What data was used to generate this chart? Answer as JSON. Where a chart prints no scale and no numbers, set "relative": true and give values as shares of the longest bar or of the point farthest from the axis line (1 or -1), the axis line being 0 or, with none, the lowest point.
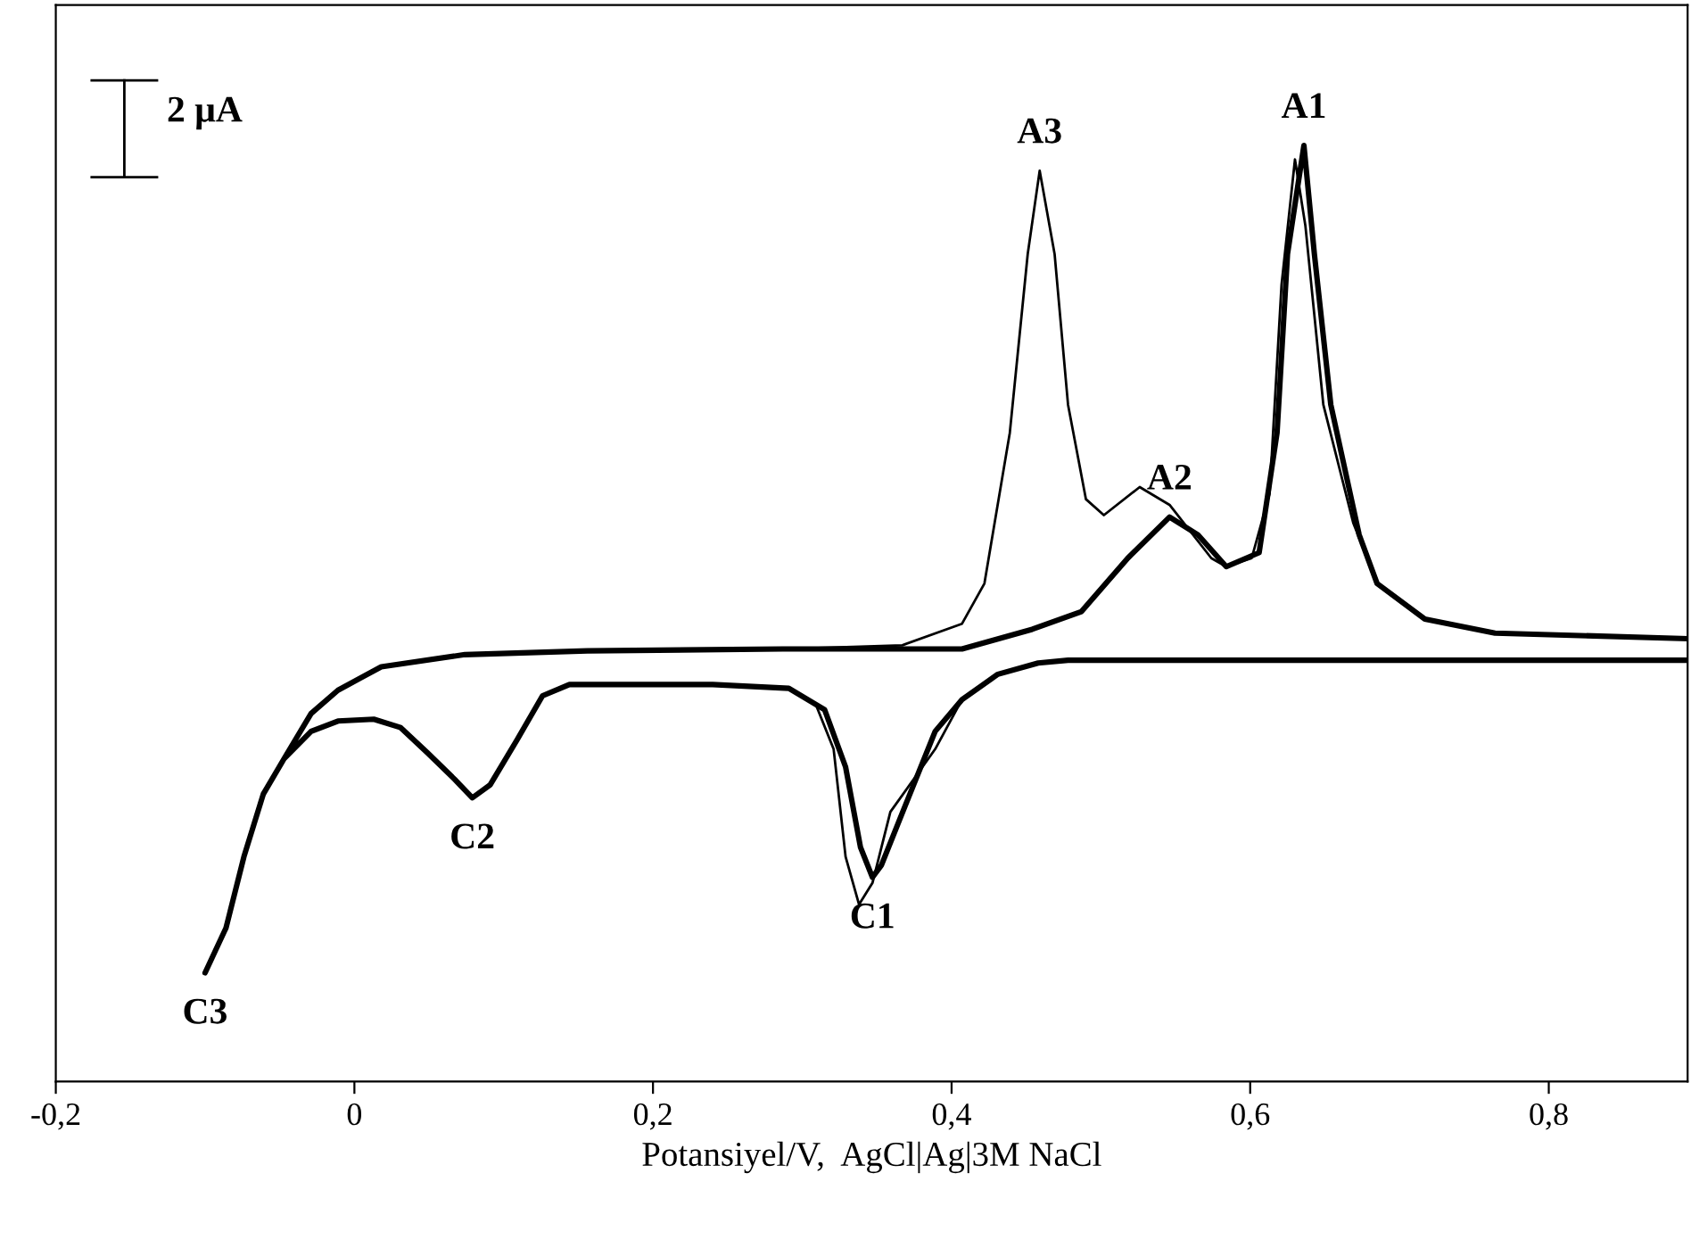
{
  "chart_data": {
    "type": "line",
    "relative": true,
    "xlabel": "Potansiyel/V,  AgCl|Ag|3M NaCl",
    "xlim": [
      -0.2,
      0.893
    ],
    "xticks": [
      {
        "value": -0.2,
        "label": "-0,2"
      },
      0,
      {
        "value": 0.2,
        "label": "0,2"
      },
      {
        "value": 0.4,
        "label": "0,4"
      },
      {
        "value": 0.6,
        "label": "0,6"
      },
      {
        "value": 0.8,
        "label": "0,8"
      }
    ],
    "tick_labels": "x",
    "grid": false,
    "legend": false,
    "marker": "none",
    "line_style": "solid",
    "series": [
      {
        "color": "#000000",
        "x": [
          0.892,
          0.478,
          0.458,
          0.431,
          0.407,
          0.389,
          0.359,
          0.347,
          0.338,
          0.329,
          0.321,
          0.309,
          0.291,
          0.24,
          0.144,
          0.126,
          0.109,
          0.091,
          0.079,
          0.067,
          0.049,
          0.031,
          0.013,
          -0.011,
          -0.029,
          -0.047,
          -0.061,
          -0.074,
          -0.086,
          -0.1,
          -0.086,
          -0.074,
          -0.061,
          -0.047,
          -0.029,
          -0.011,
          0.018,
          0.074,
          0.156,
          0.287,
          0.367,
          0.407,
          0.422,
          0.439,
          0.451,
          0.459,
          0.469,
          0.478,
          0.49,
          0.502,
          0.526,
          0.546,
          0.574,
          0.584,
          0.601,
          0.613,
          0.621,
          0.63,
          0.637,
          0.649,
          0.669,
          0.685,
          0.717,
          0.764,
          0.892
        ],
        "values": [
          0.45,
          0.45,
          0.447,
          0.435,
          0.408,
          0.355,
          0.288,
          0.212,
          0.189,
          0.24,
          0.355,
          0.403,
          0.42,
          0.424,
          0.424,
          0.412,
          0.365,
          0.317,
          0.303,
          0.323,
          0.351,
          0.378,
          0.387,
          0.385,
          0.374,
          0.345,
          0.307,
          0.24,
          0.164,
          0.116,
          0.164,
          0.24,
          0.307,
          0.345,
          0.393,
          0.418,
          0.443,
          0.456,
          0.46,
          0.462,
          0.466,
          0.489,
          0.532,
          0.693,
          0.884,
          0.973,
          0.884,
          0.723,
          0.622,
          0.605,
          0.635,
          0.616,
          0.559,
          0.55,
          0.559,
          0.628,
          0.851,
          0.985,
          0.914,
          0.723,
          0.597,
          0.532,
          0.494,
          0.479,
          0.473
        ]
      },
      {
        "color": "#000000",
        "x": [
          0.892,
          0.478,
          0.458,
          0.431,
          0.407,
          0.389,
          0.365,
          0.353,
          0.347,
          0.339,
          0.329,
          0.315,
          0.291,
          0.24,
          0.144,
          0.126,
          0.109,
          0.091,
          0.079,
          0.067,
          0.049,
          0.031,
          0.013,
          -0.011,
          -0.029,
          -0.047,
          -0.061,
          -0.074,
          -0.086,
          -0.1,
          -0.086,
          -0.074,
          -0.061,
          -0.047,
          -0.029,
          -0.011,
          0.018,
          0.074,
          0.156,
          0.287,
          0.407,
          0.454,
          0.487,
          0.518,
          0.546,
          0.565,
          0.584,
          0.606,
          0.618,
          0.625,
          0.636,
          0.643,
          0.654,
          0.673,
          0.685,
          0.717,
          0.764,
          0.892
        ],
        "values": [
          0.45,
          0.45,
          0.447,
          0.435,
          0.408,
          0.374,
          0.279,
          0.231,
          0.218,
          0.25,
          0.336,
          0.397,
          0.42,
          0.424,
          0.424,
          0.412,
          0.365,
          0.317,
          0.303,
          0.323,
          0.351,
          0.378,
          0.387,
          0.385,
          0.374,
          0.345,
          0.307,
          0.24,
          0.164,
          0.116,
          0.164,
          0.24,
          0.307,
          0.345,
          0.393,
          0.418,
          0.443,
          0.456,
          0.46,
          0.462,
          0.462,
          0.483,
          0.502,
          0.559,
          0.603,
          0.584,
          0.55,
          0.565,
          0.693,
          0.884,
          1.0,
          0.884,
          0.723,
          0.584,
          0.532,
          0.494,
          0.479,
          0.473
        ]
      }
    ],
    "annotations": [
      "2 μA",
      {
        "text": "A3",
        "x": 0.459,
        "y": 0.973
      },
      {
        "text": "A1",
        "x": 0.636,
        "y": 1.0
      },
      {
        "text": "A2",
        "x": 0.546,
        "y": 0.603
      },
      {
        "text": "C1",
        "x": 0.347,
        "y": 0.218
      },
      {
        "text": "C2",
        "x": 0.079,
        "y": 0.303
      },
      {
        "text": "C3",
        "x": -0.1,
        "y": 0.116
      }
    ]
  }
}
